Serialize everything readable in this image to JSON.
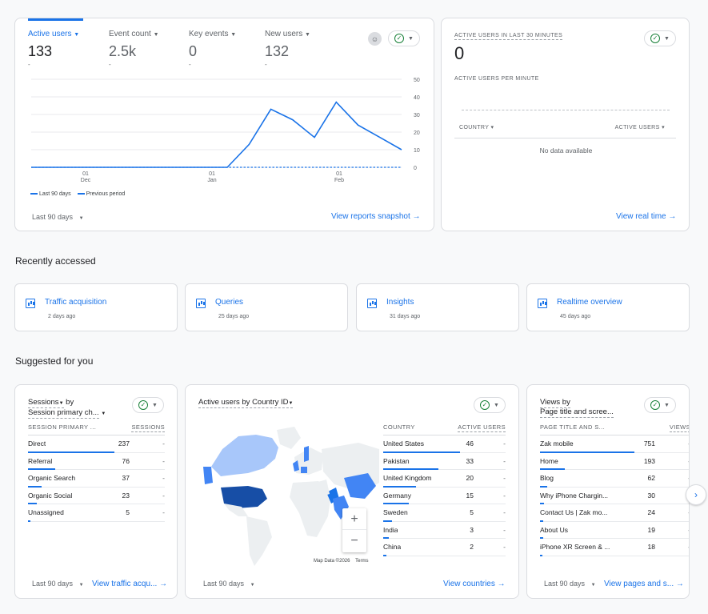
{
  "overview": {
    "metrics": [
      {
        "label": "Active users",
        "value": "133",
        "delta": "-"
      },
      {
        "label": "Event count",
        "value": "2.5k",
        "delta": "-"
      },
      {
        "label": "Key events",
        "value": "0",
        "delta": "-"
      },
      {
        "label": "New users",
        "value": "132",
        "delta": "-"
      }
    ],
    "legend_current": "Last 90 days",
    "legend_previous": "Previous period",
    "date_range": "Last 90 days",
    "footer_link": "View reports snapshot"
  },
  "chart_data": {
    "type": "line",
    "x_ticks": [
      {
        "day": "01",
        "month": "Dec"
      },
      {
        "day": "01",
        "month": "Jan"
      },
      {
        "day": "01",
        "month": "Feb"
      }
    ],
    "y_ticks": [
      "50",
      "40",
      "30",
      "20",
      "10",
      "0"
    ],
    "ylim": [
      0,
      50
    ],
    "series": [
      {
        "name": "Last 90 days",
        "values": [
          0,
          0,
          0,
          0,
          0,
          0,
          0,
          0,
          0,
          0,
          13,
          33,
          27,
          17,
          37,
          24,
          17,
          10
        ]
      },
      {
        "name": "Previous period",
        "values": [
          0,
          0,
          0,
          0,
          0,
          0,
          0,
          0,
          0,
          0,
          0,
          0,
          0,
          0,
          0,
          0,
          0,
          0
        ]
      }
    ]
  },
  "realtime": {
    "title": "ACTIVE USERS IN LAST 30 MINUTES",
    "value": "0",
    "per_minute_label": "ACTIVE USERS PER MINUTE",
    "col_country": "COUNTRY",
    "col_users": "ACTIVE USERS",
    "empty": "No data available",
    "footer_link": "View real time"
  },
  "recently_accessed": {
    "title": "Recently accessed",
    "items": [
      {
        "label": "Traffic acquisition",
        "sub": "2 days ago"
      },
      {
        "label": "Queries",
        "sub": "25 days ago"
      },
      {
        "label": "Insights",
        "sub": "31 days ago"
      },
      {
        "label": "Realtime overview",
        "sub": "45 days ago"
      }
    ]
  },
  "suggested": {
    "title": "Suggested for you",
    "sessions_card": {
      "title1": "Sessions",
      "by": "by",
      "title2": "Session primary ch...",
      "col1": "SESSION PRIMARY ...",
      "col2": "SESSIONS",
      "rows": [
        {
          "label": "Direct",
          "value": "237",
          "delta": "-",
          "pct": 100
        },
        {
          "label": "Referral",
          "value": "76",
          "delta": "-",
          "pct": 32
        },
        {
          "label": "Organic Search",
          "value": "37",
          "delta": "-",
          "pct": 16
        },
        {
          "label": "Organic Social",
          "value": "23",
          "delta": "-",
          "pct": 10
        },
        {
          "label": "Unassigned",
          "value": "5",
          "delta": "-",
          "pct": 2
        }
      ],
      "date_range": "Last 90 days",
      "footer_link": "View traffic acqu..."
    },
    "country_card": {
      "title1": "Active users",
      "title2": "by Country ID",
      "col1": "COUNTRY",
      "col2": "ACTIVE USERS",
      "rows": [
        {
          "label": "United States",
          "value": "46",
          "delta": "-",
          "pct": 100
        },
        {
          "label": "Pakistan",
          "value": "33",
          "delta": "-",
          "pct": 72
        },
        {
          "label": "United Kingdom",
          "value": "20",
          "delta": "-",
          "pct": 43
        },
        {
          "label": "Germany",
          "value": "15",
          "delta": "-",
          "pct": 33
        },
        {
          "label": "Sweden",
          "value": "5",
          "delta": "-",
          "pct": 11
        },
        {
          "label": "India",
          "value": "3",
          "delta": "-",
          "pct": 7
        },
        {
          "label": "China",
          "value": "2",
          "delta": "-",
          "pct": 4
        }
      ],
      "map_credit": "Map Data ©2026",
      "terms": "Terms",
      "zoom_in": "+",
      "zoom_out": "−",
      "date_range": "Last 90 days",
      "footer_link": "View countries"
    },
    "pages_card": {
      "title1": "Views by",
      "title2": "Page title and scree...",
      "col1": "PAGE TITLE AND S...",
      "col2": "VIEWS",
      "rows": [
        {
          "label": "Zak mobile",
          "value": "751",
          "delta": "-",
          "pct": 100
        },
        {
          "label": "Home",
          "value": "193",
          "delta": "-",
          "pct": 26
        },
        {
          "label": "Blog",
          "value": "62",
          "delta": "-",
          "pct": 8
        },
        {
          "label": "Why iPhone Chargin...",
          "value": "30",
          "delta": "-",
          "pct": 4
        },
        {
          "label": "Contact Us | Zak mo...",
          "value": "24",
          "delta": "-",
          "pct": 3
        },
        {
          "label": "About Us",
          "value": "19",
          "delta": "-",
          "pct": 3
        },
        {
          "label": "iPhone XR Screen & ...",
          "value": "18",
          "delta": "-",
          "pct": 2
        }
      ],
      "date_range": "Last 90 days",
      "footer_link": "View pages and s..."
    }
  },
  "colors": {
    "accent": "#1a73e8",
    "check": "#188038"
  }
}
